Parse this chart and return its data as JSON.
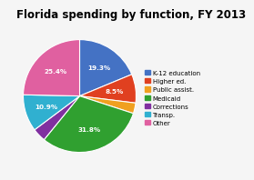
{
  "title": "Florida spending by function, FY 2013",
  "labels": [
    "K-12 education",
    "Higher ed.",
    "Public assist.",
    "Medicaid",
    "Corrections",
    "Transp.",
    "Other"
  ],
  "values": [
    19.3,
    8.5,
    3.1,
    31.8,
    4.0,
    10.9,
    25.4
  ],
  "colors": [
    "#4472c4",
    "#e04020",
    "#f0a020",
    "#30a030",
    "#8030a0",
    "#30b0d0",
    "#e060a0"
  ],
  "pct_labels": [
    "19.3%",
    "8.5%",
    "",
    "31.8%",
    "",
    "10.9%",
    "25.4%"
  ],
  "startangle": 90,
  "background_color": "#f5f5f5",
  "title_fontsize": 8.5,
  "label_fontsize": 5.2,
  "legend_fontsize": 5.0
}
